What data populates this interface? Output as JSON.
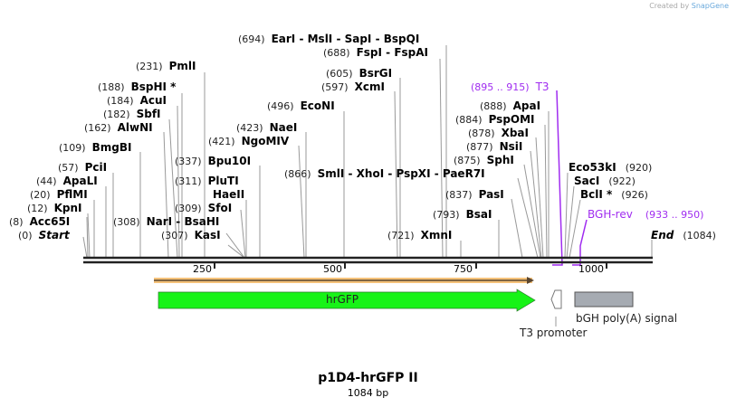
{
  "credit": {
    "text": "Created by",
    "brand": "SnapGene"
  },
  "title": "p1D4-hrGFP II",
  "length": "1084 bp",
  "ticks": [
    "250",
    "500",
    "750",
    "1000"
  ],
  "sites": [
    {
      "pos": "(694)",
      "name": "EarI  -  MslI  -  SapI  -  BspQI"
    },
    {
      "pos": "(688)",
      "name": "FspI  -  FspAI"
    },
    {
      "pos": "(231)",
      "name": "PmlI"
    },
    {
      "pos": "(605)",
      "name": "BsrGI"
    },
    {
      "pos": "(597)",
      "name": "XcmI"
    },
    {
      "pos": "(188)",
      "name": "BspHI *"
    },
    {
      "pos": "(184)",
      "name": "AcuI"
    },
    {
      "pos": "(182)",
      "name": "SbfI"
    },
    {
      "pos": "(496)",
      "name": "EcoNI"
    },
    {
      "pos": "(888)",
      "name": "ApaI"
    },
    {
      "pos": "(162)",
      "name": "AlwNI"
    },
    {
      "pos": "(423)",
      "name": "NaeI"
    },
    {
      "pos": "(884)",
      "name": "PspOMI"
    },
    {
      "pos": "(421)",
      "name": "NgoMIV"
    },
    {
      "pos": "(878)",
      "name": "XbaI"
    },
    {
      "pos": "(109)",
      "name": "BmgBI"
    },
    {
      "pos": "(877)",
      "name": "NsiI"
    },
    {
      "pos": "(337)",
      "name": "Bpu10I"
    },
    {
      "pos": "(875)",
      "name": "SphI"
    },
    {
      "pos": "(57)",
      "name": "PciI"
    },
    {
      "pos": "(920)",
      "name": "Eco53kI"
    },
    {
      "pos": "(866)",
      "name": "SmlI  -  XhoI  -  PspXI  -  PaeR7I"
    },
    {
      "pos": "(44)",
      "name": "ApaLI"
    },
    {
      "pos": "(311)",
      "name": "PluTI"
    },
    {
      "pos": "(922)",
      "name": "SacI"
    },
    {
      "pos": "(20)",
      "name": "PflMI"
    },
    {
      "pos": "",
      "name": "HaeII"
    },
    {
      "pos": "(837)",
      "name": "PasI"
    },
    {
      "pos": "(926)",
      "name": "BclI *"
    },
    {
      "pos": "(12)",
      "name": "KpnI"
    },
    {
      "pos": "(309)",
      "name": "SfoI"
    },
    {
      "pos": "(793)",
      "name": "BsaI"
    },
    {
      "pos": "(8)",
      "name": "Acc65I"
    },
    {
      "pos": "(308)",
      "name": "NarI  -  BsaHI"
    },
    {
      "pos": "(307)",
      "name": "KasI"
    },
    {
      "pos": "(0)",
      "name": "Start"
    },
    {
      "pos": "(721)",
      "name": "XmnI"
    },
    {
      "pos": "(1084)",
      "name": "End"
    }
  ],
  "primers": [
    {
      "pos": "(895 .. 915)",
      "name": "T3"
    },
    {
      "pos": "(933 .. 950)",
      "name": "BGH-rev"
    }
  ],
  "features": {
    "orf": "",
    "gfp": "hrGFP",
    "t3": "T3 promoter",
    "bgh": "bGH poly(A) signal"
  },
  "colors": {
    "primer": "#a02cf0",
    "gfp": "#17f317",
    "orf": "#f5c27a",
    "polyA": "#a6abb2"
  }
}
